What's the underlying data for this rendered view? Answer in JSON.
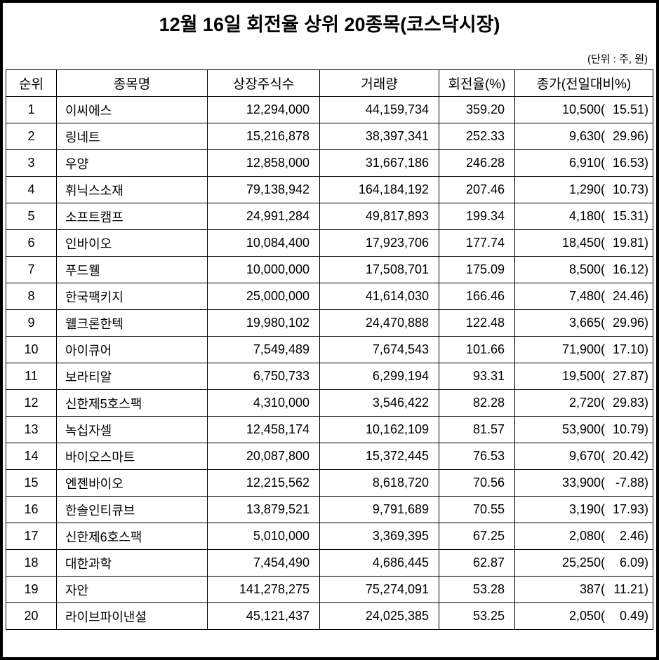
{
  "page": {
    "title": "12월 16일 회전율 상위 20종목(코스닥시장)",
    "unit_note": "(단위 : 주, 원)"
  },
  "table": {
    "headers": [
      "순위",
      "종목명",
      "상장주식수",
      "거래량",
      "회전율(%)",
      "종가(전일대비%)"
    ],
    "rows": [
      {
        "rank": "1",
        "name": "이씨에스",
        "shares": "12,294,000",
        "volume": "44,159,734",
        "turnover": "359.20",
        "close": "10,500",
        "change_pct": "15.51"
      },
      {
        "rank": "2",
        "name": "링네트",
        "shares": "15,216,878",
        "volume": "38,397,341",
        "turnover": "252.33",
        "close": "9,630",
        "change_pct": "29.96"
      },
      {
        "rank": "3",
        "name": "우양",
        "shares": "12,858,000",
        "volume": "31,667,186",
        "turnover": "246.28",
        "close": "6,910",
        "change_pct": "16.53"
      },
      {
        "rank": "4",
        "name": "휘닉스소재",
        "shares": "79,138,942",
        "volume": "164,184,192",
        "turnover": "207.46",
        "close": "1,290",
        "change_pct": "10.73"
      },
      {
        "rank": "5",
        "name": "소프트캠프",
        "shares": "24,991,284",
        "volume": "49,817,893",
        "turnover": "199.34",
        "close": "4,180",
        "change_pct": "15.31"
      },
      {
        "rank": "6",
        "name": "인바이오",
        "shares": "10,084,400",
        "volume": "17,923,706",
        "turnover": "177.74",
        "close": "18,450",
        "change_pct": "19.81"
      },
      {
        "rank": "7",
        "name": "푸드웰",
        "shares": "10,000,000",
        "volume": "17,508,701",
        "turnover": "175.09",
        "close": "8,500",
        "change_pct": "16.12"
      },
      {
        "rank": "8",
        "name": "한국팩키지",
        "shares": "25,000,000",
        "volume": "41,614,030",
        "turnover": "166.46",
        "close": "7,480",
        "change_pct": "24.46"
      },
      {
        "rank": "9",
        "name": "웰크론한텍",
        "shares": "19,980,102",
        "volume": "24,470,888",
        "turnover": "122.48",
        "close": "3,665",
        "change_pct": "29.96"
      },
      {
        "rank": "10",
        "name": "아이큐어",
        "shares": "7,549,489",
        "volume": "7,674,543",
        "turnover": "101.66",
        "close": "71,900",
        "change_pct": "17.10"
      },
      {
        "rank": "11",
        "name": "보라티알",
        "shares": "6,750,733",
        "volume": "6,299,194",
        "turnover": "93.31",
        "close": "19,500",
        "change_pct": "27.87"
      },
      {
        "rank": "12",
        "name": "신한제5호스팩",
        "shares": "4,310,000",
        "volume": "3,546,422",
        "turnover": "82.28",
        "close": "2,720",
        "change_pct": "29.83"
      },
      {
        "rank": "13",
        "name": "녹십자셀",
        "shares": "12,458,174",
        "volume": "10,162,109",
        "turnover": "81.57",
        "close": "53,900",
        "change_pct": "10.79"
      },
      {
        "rank": "14",
        "name": "바이오스마트",
        "shares": "20,087,800",
        "volume": "15,372,445",
        "turnover": "76.53",
        "close": "9,670",
        "change_pct": "20.42"
      },
      {
        "rank": "15",
        "name": "엔젠바이오",
        "shares": "12,215,562",
        "volume": "8,618,720",
        "turnover": "70.56",
        "close": "33,900",
        "change_pct": "-7.88"
      },
      {
        "rank": "16",
        "name": "한솔인티큐브",
        "shares": "13,879,521",
        "volume": "9,791,689",
        "turnover": "70.55",
        "close": "3,190",
        "change_pct": "17.93"
      },
      {
        "rank": "17",
        "name": "신한제6호스팩",
        "shares": "5,010,000",
        "volume": "3,369,395",
        "turnover": "67.25",
        "close": "2,080",
        "change_pct": "2.46"
      },
      {
        "rank": "18",
        "name": "대한과학",
        "shares": "7,454,490",
        "volume": "4,686,445",
        "turnover": "62.87",
        "close": "25,250",
        "change_pct": "6.09"
      },
      {
        "rank": "19",
        "name": "자안",
        "shares": "141,278,275",
        "volume": "75,274,091",
        "turnover": "53.28",
        "close": "387",
        "change_pct": "11.21"
      },
      {
        "rank": "20",
        "name": "라이브파이낸셜",
        "shares": "45,121,437",
        "volume": "24,025,385",
        "turnover": "53.25",
        "close": "2,050",
        "change_pct": "0.49"
      }
    ]
  }
}
